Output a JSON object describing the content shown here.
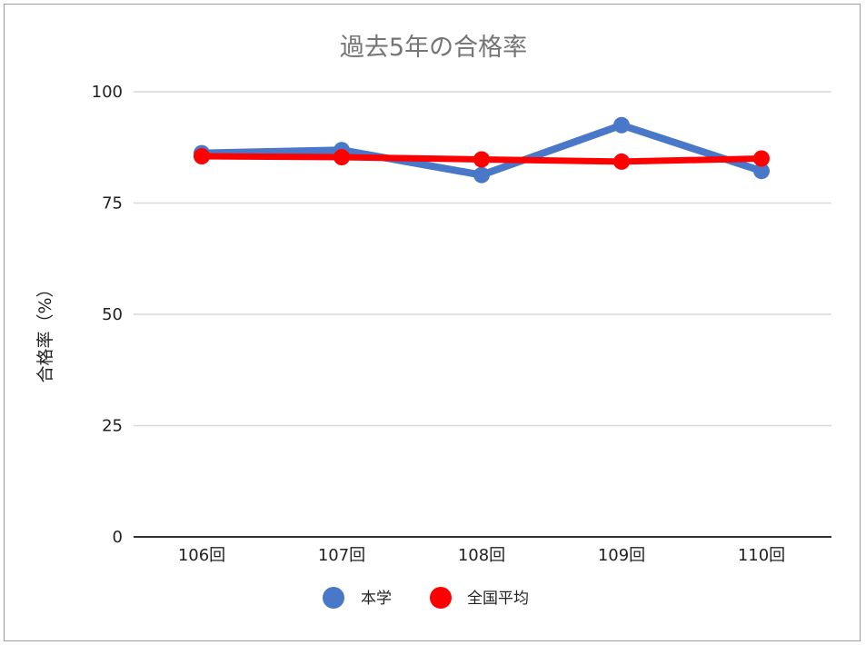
{
  "chart_data": {
    "type": "line",
    "title": "過去5年の合格率",
    "xlabel": "",
    "ylabel": "合格率（%）",
    "categories": [
      "106回",
      "107回",
      "108回",
      "109回",
      "110回"
    ],
    "y_ticks": [
      "0",
      "25",
      "50",
      "75",
      "100"
    ],
    "ylim": [
      0,
      100
    ],
    "grid": true,
    "legend_position": "bottom",
    "series": [
      {
        "name": "本学",
        "color": "#4a78c8",
        "values": [
          86.2,
          86.9,
          81.3,
          92.5,
          82.2
        ]
      },
      {
        "name": "全国平均",
        "color": "#ff0000",
        "values": [
          85.5,
          85.3,
          84.8,
          84.3,
          85.0
        ]
      }
    ]
  }
}
